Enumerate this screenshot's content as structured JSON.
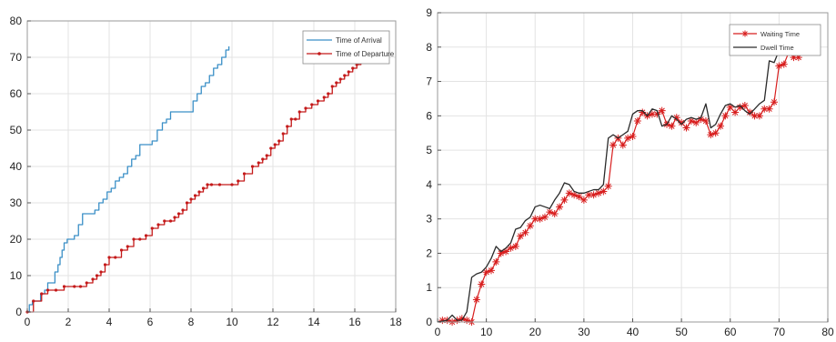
{
  "colors": {
    "arrival": "#3a8fc6",
    "departure": "#c41a1a",
    "waiting": "#d81e1e",
    "dwell": "#2a2a2a",
    "grid": "#e3e3e3",
    "axis": "#555555",
    "text": "#222222"
  },
  "chart_data": [
    {
      "type": "line",
      "step": true,
      "grid": true,
      "legend_position": "top-right",
      "xlim": [
        0,
        18
      ],
      "ylim": [
        0,
        80
      ],
      "xticks": [
        0,
        2,
        4,
        6,
        8,
        10,
        12,
        14,
        16,
        18
      ],
      "yticks": [
        0,
        10,
        20,
        30,
        40,
        50,
        60,
        70,
        80
      ],
      "legend": [
        "Time of Arrival",
        "Time of Departure"
      ],
      "series": [
        {
          "name": "Time of Arrival",
          "marker": "none",
          "x": [
            0,
            0.1,
            0.25,
            0.45,
            0.65,
            0.85,
            1.0,
            1.2,
            1.35,
            1.5,
            1.6,
            1.7,
            1.8,
            1.95,
            2.1,
            2.3,
            2.5,
            2.7,
            3.0,
            3.3,
            3.5,
            3.7,
            3.9,
            4.1,
            4.3,
            4.5,
            4.7,
            4.9,
            5.1,
            5.3,
            5.5,
            5.7,
            5.9,
            6.1,
            6.35,
            6.6,
            6.8,
            7.0,
            7.3,
            7.6,
            7.9,
            8.1,
            8.3,
            8.5,
            8.7,
            8.9,
            9.1,
            9.3,
            9.5,
            9.7,
            9.85
          ],
          "y": [
            0,
            2,
            3,
            3,
            5,
            6,
            8,
            8,
            11,
            13,
            15,
            17,
            19,
            20,
            20,
            21,
            24,
            27,
            27,
            28,
            30,
            31,
            33,
            34,
            36,
            37,
            38,
            40,
            42,
            43,
            46,
            46,
            46,
            47,
            50,
            52,
            53,
            55,
            55,
            55,
            55,
            58,
            60,
            62,
            63,
            65,
            67,
            68,
            70,
            72,
            73
          ]
        },
        {
          "name": "Time of Departure",
          "marker": "dot",
          "x": [
            0,
            0.3,
            0.7,
            1.0,
            1.4,
            1.8,
            2.3,
            2.6,
            2.9,
            3.2,
            3.4,
            3.6,
            3.8,
            4.0,
            4.3,
            4.6,
            4.9,
            5.2,
            5.5,
            5.8,
            6.1,
            6.4,
            6.7,
            7.0,
            7.2,
            7.4,
            7.6,
            7.8,
            8.0,
            8.2,
            8.4,
            8.6,
            8.8,
            9.0,
            9.4,
            10.0,
            10.3,
            10.6,
            11.0,
            11.3,
            11.5,
            11.7,
            11.9,
            12.1,
            12.3,
            12.5,
            12.7,
            12.9,
            13.1,
            13.3,
            13.6,
            13.9,
            14.2,
            14.5,
            14.7,
            14.9,
            15.1,
            15.3,
            15.5,
            15.7,
            15.9,
            16.1,
            16.3,
            16.6,
            17.0,
            17.3
          ],
          "y": [
            0,
            3,
            5,
            6,
            6,
            7,
            7,
            7,
            8,
            9,
            10,
            11,
            13,
            15,
            15,
            17,
            18,
            20,
            20,
            21,
            23,
            24,
            25,
            25,
            26,
            27,
            28,
            30,
            31,
            32,
            33,
            34,
            35,
            35,
            35,
            35,
            36,
            38,
            40,
            41,
            42,
            43,
            45,
            46,
            47,
            49,
            51,
            53,
            53,
            55,
            56,
            57,
            58,
            59,
            60,
            62,
            63,
            64,
            65,
            66,
            67,
            68,
            69,
            70,
            72,
            74
          ]
        }
      ]
    },
    {
      "type": "line",
      "grid": true,
      "legend_position": "top-right",
      "xlim": [
        0,
        80
      ],
      "ylim": [
        0,
        9
      ],
      "xticks": [
        0,
        10,
        20,
        30,
        40,
        50,
        60,
        70,
        80
      ],
      "yticks": [
        0,
        1,
        2,
        3,
        4,
        5,
        6,
        7,
        8,
        9
      ],
      "legend": [
        "Waiting Time",
        "Dwell Time"
      ],
      "series": [
        {
          "name": "Waiting Time",
          "marker": "asterisk",
          "x": [
            1,
            2,
            3,
            4,
            5,
            6,
            7,
            8,
            9,
            10,
            11,
            12,
            13,
            14,
            15,
            16,
            17,
            18,
            19,
            20,
            21,
            22,
            23,
            24,
            25,
            26,
            27,
            28,
            29,
            30,
            31,
            32,
            33,
            34,
            35,
            36,
            37,
            38,
            39,
            40,
            41,
            42,
            43,
            44,
            45,
            46,
            47,
            48,
            49,
            50,
            51,
            52,
            53,
            54,
            55,
            56,
            57,
            58,
            59,
            60,
            61,
            62,
            63,
            64,
            65,
            66,
            67,
            68,
            69,
            70,
            71,
            72,
            73,
            74
          ],
          "y": [
            0.05,
            0.05,
            0.0,
            0.05,
            0.1,
            0.05,
            0.0,
            0.65,
            1.1,
            1.45,
            1.5,
            1.75,
            2.0,
            2.05,
            2.15,
            2.2,
            2.5,
            2.6,
            2.8,
            3.0,
            3.0,
            3.05,
            3.2,
            3.15,
            3.35,
            3.55,
            3.75,
            3.7,
            3.65,
            3.55,
            3.7,
            3.7,
            3.75,
            3.8,
            3.95,
            5.15,
            5.35,
            5.15,
            5.35,
            5.4,
            5.85,
            6.1,
            6.0,
            6.05,
            6.05,
            6.15,
            5.75,
            5.7,
            5.95,
            5.8,
            5.65,
            5.85,
            5.8,
            5.9,
            5.85,
            5.45,
            5.5,
            5.7,
            6.0,
            6.25,
            6.1,
            6.25,
            6.3,
            6.1,
            6.0,
            6.0,
            6.2,
            6.2,
            6.4,
            7.45,
            7.5,
            7.85,
            7.7,
            7.7
          ]
        },
        {
          "name": "Dwell Time",
          "marker": "none",
          "x": [
            0,
            2,
            3,
            4,
            5,
            6,
            7,
            8,
            9,
            10,
            11,
            12,
            13,
            14,
            15,
            16,
            17,
            18,
            19,
            20,
            21,
            22,
            23,
            24,
            25,
            26,
            27,
            28,
            29,
            30,
            31,
            32,
            33,
            34,
            35,
            36,
            37,
            38,
            39,
            40,
            41,
            42,
            43,
            44,
            45,
            46,
            47,
            48,
            49,
            50,
            51,
            52,
            53,
            54,
            55,
            56,
            57,
            58,
            59,
            60,
            61,
            62,
            63,
            64,
            65,
            66,
            67,
            68,
            69,
            70,
            71,
            72,
            73,
            74
          ],
          "y": [
            0.0,
            0.05,
            0.2,
            0.05,
            0.05,
            0.3,
            1.3,
            1.4,
            1.45,
            1.6,
            1.85,
            2.2,
            2.05,
            2.15,
            2.3,
            2.7,
            2.75,
            2.95,
            3.05,
            3.35,
            3.4,
            3.35,
            3.3,
            3.55,
            3.75,
            4.05,
            4.0,
            3.8,
            3.75,
            3.75,
            3.8,
            3.85,
            3.85,
            4.0,
            5.35,
            5.45,
            5.35,
            5.45,
            5.55,
            6.05,
            6.15,
            6.15,
            6.0,
            6.2,
            6.15,
            5.7,
            5.75,
            6.0,
            5.9,
            5.75,
            5.9,
            5.95,
            5.9,
            5.95,
            6.35,
            5.65,
            5.75,
            6.05,
            6.3,
            6.35,
            6.25,
            6.3,
            6.15,
            6.05,
            6.2,
            6.35,
            6.45,
            7.6,
            7.55,
            7.9,
            7.8,
            7.85,
            7.9,
            7.85
          ]
        }
      ]
    }
  ]
}
